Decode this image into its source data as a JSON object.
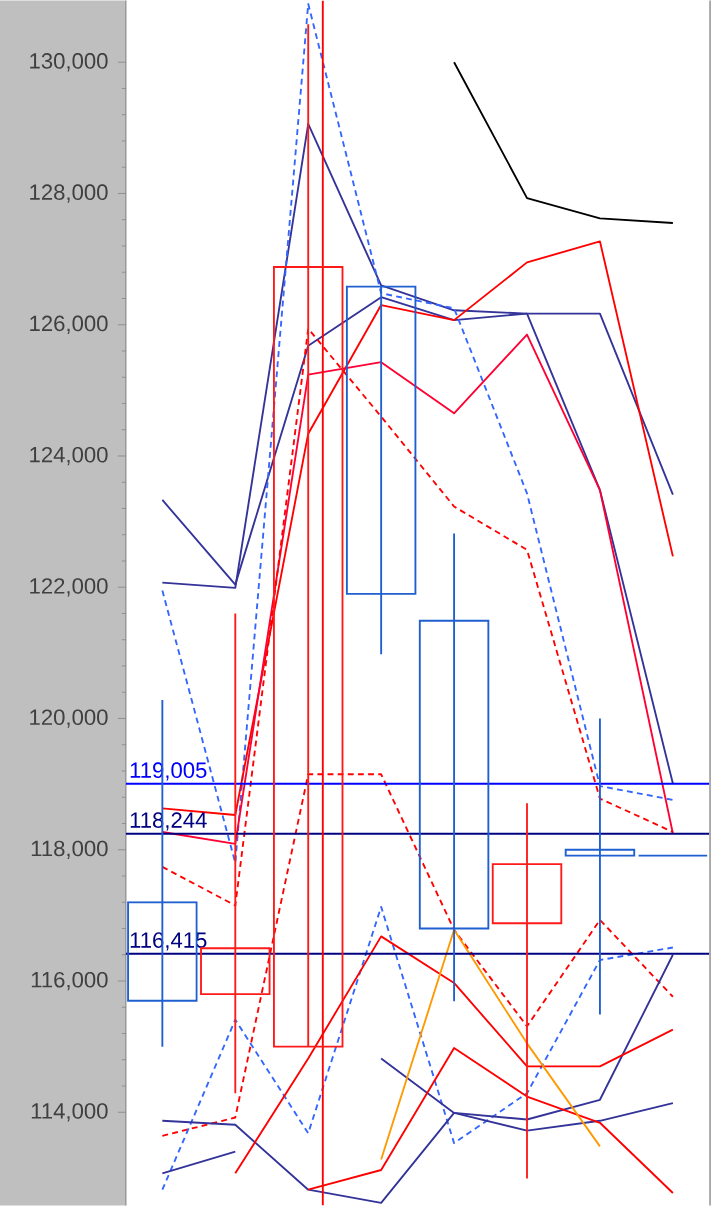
{
  "chart_data": {
    "type": "candlestick",
    "categories": [
      null,
      null,
      null,
      null,
      null,
      null,
      null,
      null
    ],
    "ohlc": [
      [
        117200,
        120280,
        115000,
        115700
      ],
      [
        115800,
        121600,
        114290,
        116500
      ],
      [
        115000,
        130580,
        115000,
        126880
      ],
      [
        126580,
        126580,
        120980,
        121900
      ],
      [
        121490,
        122820,
        115690,
        116800
      ],
      [
        116880,
        118710,
        112990,
        117780
      ],
      [
        118000,
        120000,
        115490,
        117910
      ],
      [
        117910,
        117910,
        117910,
        117910
      ]
    ],
    "colors": [
      "#1f5fd0",
      "#ff1a1a",
      "#ff1a1a",
      "#1f5fd0",
      "#1f5fd0",
      "#ff1a1a",
      "#1f5fd0",
      "#1f5fd0"
    ],
    "series": [
      {
        "type": "line",
        "color": "#000000",
        "values": [
          null,
          null,
          null,
          null,
          130000,
          127930,
          127620,
          127550
        ]
      },
      {
        "type": "line",
        "color": "#333399",
        "values": [
          123330,
          122040,
          125680,
          126420,
          126070,
          126170,
          126170,
          123410
        ]
      },
      {
        "type": "line",
        "color": "#333399",
        "values": [
          122070,
          121990,
          129060,
          126600,
          126220,
          126170,
          123480,
          119010
        ]
      },
      {
        "type": "line",
        "color": "#3366ff",
        "line_style": "dashed",
        "values": [
          121950,
          117800,
          130890,
          126480,
          126250,
          123430,
          118970,
          118760
        ]
      },
      {
        "type": "line",
        "color": "#ff0000",
        "values": [
          118630,
          118530,
          124340,
          126300,
          126070,
          126950,
          127270,
          122470
        ]
      },
      {
        "type": "line",
        "color": "#ff0033",
        "values": [
          118270,
          118090,
          125240,
          125430,
          124650,
          125850,
          123480,
          118250
        ]
      },
      {
        "type": "line",
        "color": "#ff0000",
        "line_style": "dashed",
        "values": [
          117740,
          117150,
          125940,
          124600,
          123230,
          122570,
          118780,
          118270
        ]
      },
      {
        "type": "line",
        "color": "#ff0000",
        "line_style": "dashed",
        "values": [
          113640,
          113920,
          119150,
          119150,
          116780,
          115310,
          116930,
          115760
        ]
      },
      {
        "type": "line",
        "color": "#3366ff",
        "line_style": "dashed",
        "values": [
          112820,
          115410,
          113680,
          117130,
          113530,
          114290,
          116320,
          116510
        ]
      },
      {
        "type": "line",
        "color": "#333399",
        "values": [
          113070,
          113400,
          null,
          114820,
          113990,
          113890,
          114190,
          116400
        ]
      },
      {
        "type": "line",
        "color": "#333399",
        "values": [
          113870,
          113810,
          112820,
          112620,
          113990,
          113720,
          113870,
          114140
        ]
      },
      {
        "type": "line",
        "color": "#ff0000",
        "values": [
          null,
          null,
          112820,
          113120,
          114980,
          114240,
          113840,
          112770
        ]
      },
      {
        "type": "line",
        "color": "#ff0000",
        "values": [
          null,
          113070,
          114820,
          116680,
          115970,
          114700,
          114700,
          115260
        ]
      },
      {
        "type": "line",
        "color": "#ff9900",
        "values": [
          null,
          null,
          null,
          113280,
          116780,
          115050,
          113480,
          null
        ]
      }
    ],
    "ylim": [
      112580,
      130940
    ],
    "yticks": [
      {
        "value": 114000,
        "label": "114,000"
      },
      {
        "value": 116000,
        "label": "116,000"
      },
      {
        "value": 118000,
        "label": "118,000"
      },
      {
        "value": 120000,
        "label": "120,000"
      },
      {
        "value": 122000,
        "label": "122,000"
      },
      {
        "value": 124000,
        "label": "124,000"
      },
      {
        "value": 126000,
        "label": "126,000"
      },
      {
        "value": 128000,
        "label": "128,000"
      },
      {
        "value": 130000,
        "label": "130,000"
      }
    ],
    "ref_lines": [
      {
        "axis": "y",
        "value": 119005,
        "label": "119,005",
        "color": "#0000ff"
      },
      {
        "axis": "y",
        "value": 118244,
        "label": "118,244",
        "color": "#000080"
      },
      {
        "axis": "y",
        "value": 116415,
        "label": "116,415",
        "color": "#000080"
      }
    ],
    "marker": "none",
    "tick_labels": "y"
  }
}
